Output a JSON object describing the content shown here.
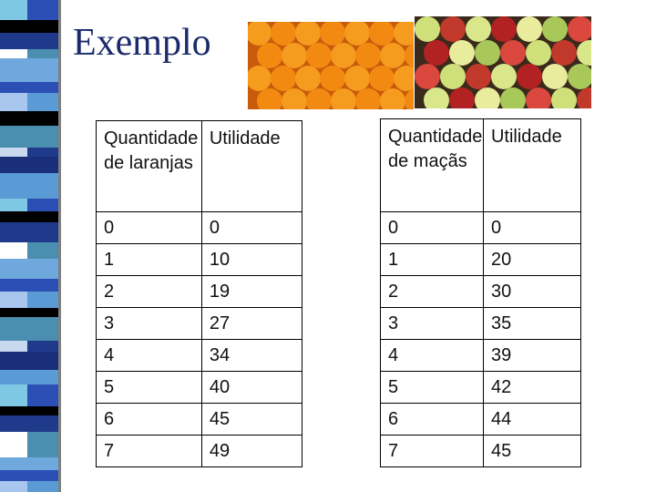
{
  "slide": {
    "title": "Exemplo",
    "images": [
      "oranges-photo",
      "apples-photo"
    ]
  },
  "tables": [
    {
      "headers": [
        "Quantidade de laranjas",
        "Utilidade"
      ],
      "rows": [
        [
          "0",
          "0"
        ],
        [
          "1",
          "10"
        ],
        [
          "2",
          "19"
        ],
        [
          "3",
          "27"
        ],
        [
          "4",
          "34"
        ],
        [
          "5",
          "40"
        ],
        [
          "6",
          "45"
        ],
        [
          "7",
          "49"
        ]
      ]
    },
    {
      "headers": [
        "Quantidade de maçãs",
        "Utilidade"
      ],
      "rows": [
        [
          "0",
          "0"
        ],
        [
          "1",
          "20"
        ],
        [
          "2",
          "30"
        ],
        [
          "3",
          "35"
        ],
        [
          "4",
          "39"
        ],
        [
          "5",
          "42"
        ],
        [
          "6",
          "44"
        ],
        [
          "7",
          "45"
        ]
      ]
    }
  ]
}
